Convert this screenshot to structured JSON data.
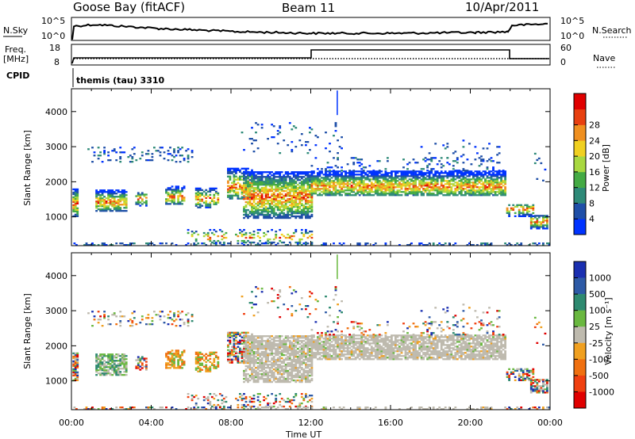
{
  "header": {
    "station": "Goose Bay (fitACF)",
    "beam": "Beam 11",
    "date": "10/Apr/2011"
  },
  "strip": {
    "nsky_label": "N.Sky",
    "nsearch_label": "N.Search",
    "nsky_ticks": [
      "10^5",
      "10^0"
    ],
    "nsearch_ticks": [
      "10^5",
      "10^0"
    ],
    "freq_label_1": "Freq.",
    "freq_label_2": "[MHz]",
    "freq_ticks": [
      "18",
      "8"
    ],
    "nave_label": "Nave",
    "nave_ticks": [
      "60",
      "0"
    ],
    "cpid_label": "CPID",
    "cpid_text": "themis (tau) 3310"
  },
  "colors": {
    "power": [
      "#0033ff",
      "#1f4fa8",
      "#2e8a78",
      "#44aa44",
      "#a8d840",
      "#f0d020",
      "#f09020",
      "#e84010",
      "#e00000"
    ],
    "velocity": [
      "#1a2fb0",
      "#2d5aa6",
      "#2e8a70",
      "#6ab840",
      "#bebaae",
      "#bebaae",
      "#f0a020",
      "#f07010",
      "#f04010",
      "#e00000"
    ]
  },
  "chart_data": [
    {
      "type": "heatmap",
      "panel": "power",
      "ylabel": "Slant Range [km]",
      "yticks": [
        1000,
        2000,
        3000,
        4000
      ],
      "ylim": [
        180,
        4650
      ],
      "xlim": [
        0,
        24
      ],
      "colorbar_label": "Power [dB]",
      "colorbar_ticks": [
        4,
        8,
        12,
        16,
        20,
        24,
        28
      ]
    },
    {
      "type": "heatmap",
      "panel": "velocity",
      "ylabel": "Slant Range [km]",
      "yticks": [
        1000,
        2000,
        3000,
        4000
      ],
      "ylim": [
        180,
        4650
      ],
      "xlim": [
        0,
        24
      ],
      "xlabel": "Time UT",
      "xticks": [
        "00:00",
        "04:00",
        "08:00",
        "12:00",
        "16:00",
        "20:00",
        "00:00"
      ],
      "colorbar_label": "Velocity [m s⁻¹]",
      "colorbar_ticks": [
        "1000",
        "500",
        "100",
        "25",
        "-25",
        "-100",
        "-500",
        "-1000"
      ]
    }
  ]
}
